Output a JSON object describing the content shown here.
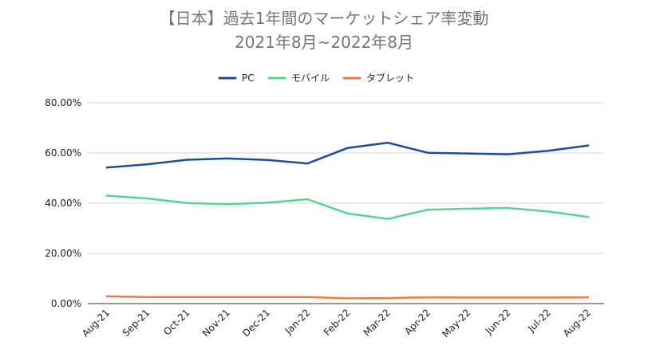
{
  "chart_data": {
    "type": "line",
    "title_lines": [
      "【日本】過去1年間のマーケットシェア率変動",
      "2021年8月~2022年8月"
    ],
    "categories": [
      "Aug-21",
      "Sep-21",
      "Oct-21",
      "Nov-21",
      "Dec-21",
      "Jan-22",
      "Feb-22",
      "Mar-22",
      "Apr-22",
      "May-22",
      "Jun-22",
      "Jul-22",
      "Aug-22"
    ],
    "series": [
      {
        "name": "PC",
        "color": "#1c4ba1",
        "values": [
          54.2,
          55.5,
          57.3,
          57.8,
          57.2,
          55.8,
          62.0,
          64.1,
          60.1,
          59.8,
          59.5,
          60.9,
          63.0
        ]
      },
      {
        "name": "モバイル",
        "color": "#57d68a",
        "values": [
          43.0,
          41.9,
          40.1,
          39.6,
          40.2,
          41.6,
          35.9,
          33.7,
          37.4,
          37.8,
          38.1,
          36.7,
          34.5
        ]
      },
      {
        "name": "タブレット",
        "color": "#f07b3f",
        "values": [
          2.9,
          2.6,
          2.6,
          2.6,
          2.6,
          2.6,
          2.1,
          2.2,
          2.5,
          2.4,
          2.4,
          2.4,
          2.5
        ]
      }
    ],
    "ylim": [
      0,
      80
    ],
    "yticks": [
      "0.00%",
      "20.00%",
      "40.00%",
      "60.00%",
      "80.00%"
    ],
    "ytick_values": [
      0,
      20,
      40,
      60,
      80
    ],
    "grid": true,
    "legend_position": "top-center"
  }
}
